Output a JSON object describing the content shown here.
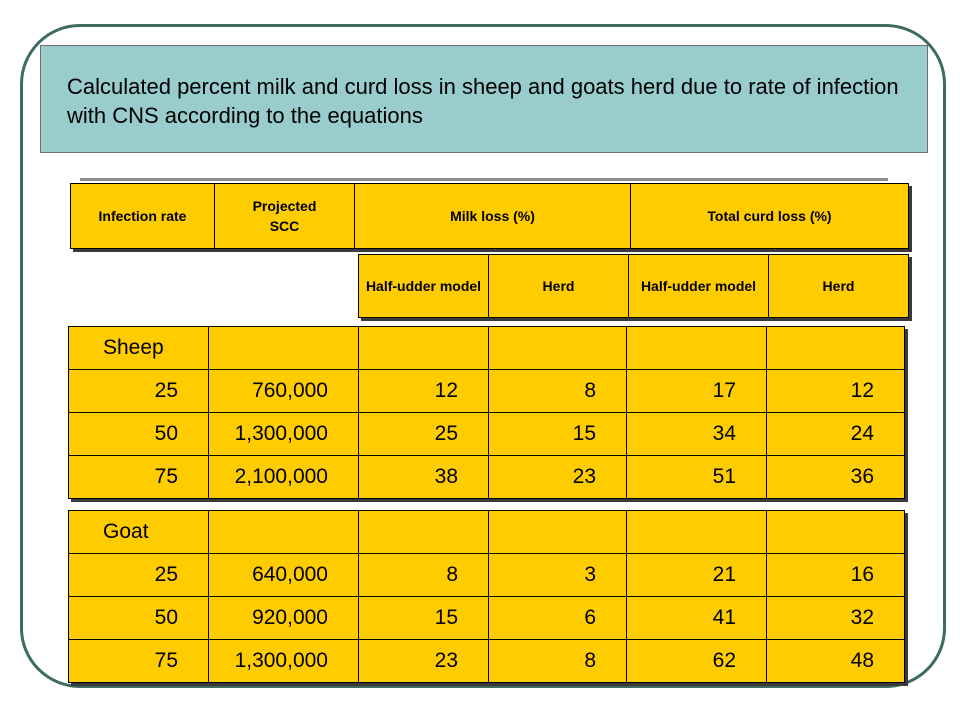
{
  "title": "Calculated percent milk and curd loss in sheep and goats herd due to rate of infection with CNS according to the equations",
  "header_top": {
    "infection_rate": "Infection rate",
    "projected": "Projected",
    "scc": "SCC",
    "milk_loss": "Milk loss (%)",
    "total_curd_loss": "Total curd loss (%)"
  },
  "header_sub": {
    "half_udder_1": "Half-udder model",
    "herd_1": "Herd",
    "half_udder_2": "Half-udder model",
    "herd_2": "Herd"
  },
  "sheep": {
    "label": "Sheep",
    "rows": [
      {
        "rate": "25",
        "scc": "760,000",
        "milk_half": "12",
        "milk_herd": "8",
        "curd_half": "17",
        "curd_herd": "12"
      },
      {
        "rate": "50",
        "scc": "1,300,000",
        "milk_half": "25",
        "milk_herd": "15",
        "curd_half": "34",
        "curd_herd": "24"
      },
      {
        "rate": "75",
        "scc": "2,100,000",
        "milk_half": "38",
        "milk_herd": "23",
        "curd_half": "51",
        "curd_herd": "36"
      }
    ]
  },
  "goat": {
    "label": "Goat",
    "rows": [
      {
        "rate": "25",
        "scc": "640,000",
        "milk_half": "8",
        "milk_herd": "3",
        "curd_half": "21",
        "curd_herd": "16"
      },
      {
        "rate": "50",
        "scc": "920,000",
        "milk_half": "15",
        "milk_herd": "6",
        "curd_half": "41",
        "curd_herd": "32"
      },
      {
        "rate": "75",
        "scc": "1,300,000",
        "milk_half": "23",
        "milk_herd": "8",
        "curd_half": "62",
        "curd_herd": "48"
      }
    ]
  }
}
